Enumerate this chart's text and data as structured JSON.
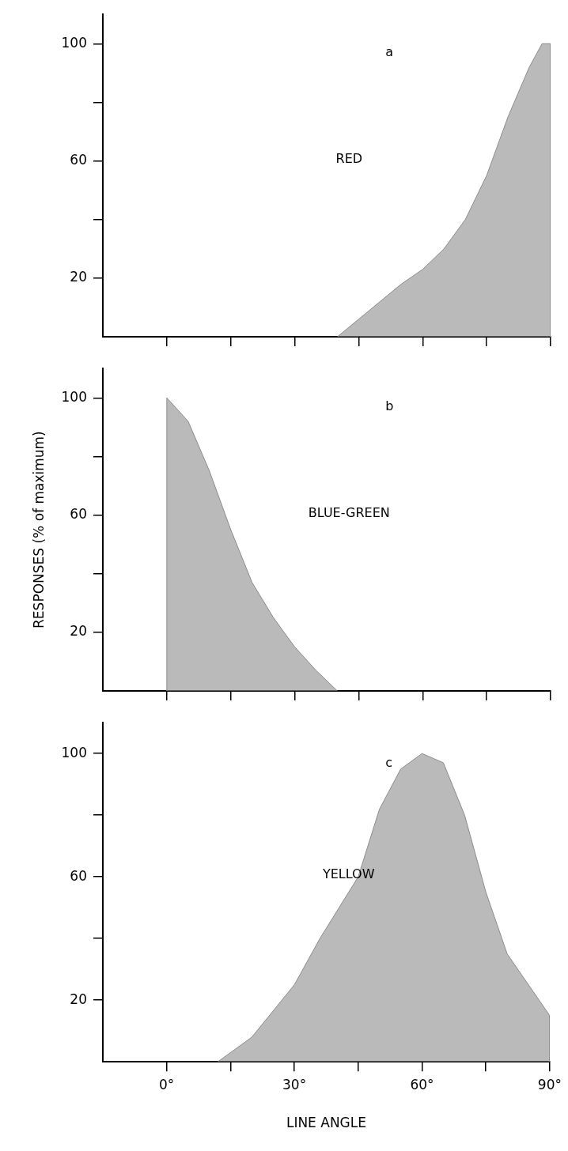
{
  "chart_data": [
    {
      "type": "area",
      "x": [
        40,
        45,
        50,
        55,
        60,
        65,
        70,
        75,
        80,
        85,
        88,
        90,
        90
      ],
      "values": [
        0,
        6,
        12,
        18,
        23,
        30,
        40,
        55,
        75,
        92,
        100,
        100,
        0
      ],
      "color": "#8c8c8c",
      "xlim": [
        -15,
        90
      ],
      "ylim": [
        0,
        110
      ],
      "xticks": [
        {
          "value": 0,
          "label": null
        },
        {
          "value": 15,
          "label": null
        },
        {
          "value": 30,
          "label": null
        },
        {
          "value": 45,
          "label": null
        },
        {
          "value": 60,
          "label": null
        },
        {
          "value": 75,
          "label": null
        },
        {
          "value": 90,
          "label": null
        }
      ],
      "yticks": [
        {
          "value": 20,
          "label": "20"
        },
        {
          "value": 40,
          "label": null
        },
        {
          "value": 60,
          "label": "60"
        },
        {
          "value": 80,
          "label": null
        },
        {
          "value": 100,
          "label": "100"
        }
      ],
      "tick_labels": "y",
      "grid": false,
      "legend": false,
      "annotations": [
        "a",
        "RED"
      ]
    },
    {
      "type": "area",
      "x": [
        0,
        0,
        5,
        10,
        15,
        20,
        25,
        30,
        35,
        40
      ],
      "values": [
        0,
        100,
        92,
        75,
        55,
        37,
        25,
        15,
        7,
        0
      ],
      "color": "#8c8c8c",
      "xlim": [
        -15,
        90
      ],
      "ylim": [
        0,
        110
      ],
      "xticks": [
        {
          "value": 0,
          "label": null
        },
        {
          "value": 15,
          "label": null
        },
        {
          "value": 30,
          "label": null
        },
        {
          "value": 45,
          "label": null
        },
        {
          "value": 60,
          "label": null
        },
        {
          "value": 75,
          "label": null
        },
        {
          "value": 90,
          "label": null
        }
      ],
      "yticks": [
        {
          "value": 20,
          "label": "20"
        },
        {
          "value": 40,
          "label": null
        },
        {
          "value": 60,
          "label": "60"
        },
        {
          "value": 80,
          "label": null
        },
        {
          "value": 100,
          "label": "100"
        }
      ],
      "tick_labels": "y",
      "grid": false,
      "legend": false,
      "ylabel": "RESPONSES (% of maximum)",
      "annotations": [
        "b",
        "BLUE-GREEN"
      ]
    },
    {
      "type": "area",
      "x": [
        12,
        20,
        30,
        36,
        45,
        50,
        55,
        60,
        65,
        70,
        75,
        80,
        85,
        90,
        90
      ],
      "values": [
        0,
        8,
        25,
        40,
        60,
        82,
        95,
        100,
        97,
        80,
        55,
        35,
        25,
        15,
        0
      ],
      "color": "#8c8c8c",
      "xlim": [
        -15,
        90
      ],
      "ylim": [
        0,
        110
      ],
      "xticks": [
        {
          "value": 0,
          "label": "0°"
        },
        {
          "value": 15,
          "label": null
        },
        {
          "value": 30,
          "label": "30°"
        },
        {
          "value": 45,
          "label": null
        },
        {
          "value": 60,
          "label": "60°"
        },
        {
          "value": 75,
          "label": null
        },
        {
          "value": 90,
          "label": "90°"
        }
      ],
      "yticks": [
        {
          "value": 20,
          "label": "20"
        },
        {
          "value": 40,
          "label": null
        },
        {
          "value": 60,
          "label": "60"
        },
        {
          "value": 80,
          "label": null
        },
        {
          "value": 100,
          "label": "100"
        }
      ],
      "grid": false,
      "legend": false,
      "xlabel": "LINE ANGLE",
      "annotations": [
        "c",
        "YELLOW"
      ]
    }
  ]
}
